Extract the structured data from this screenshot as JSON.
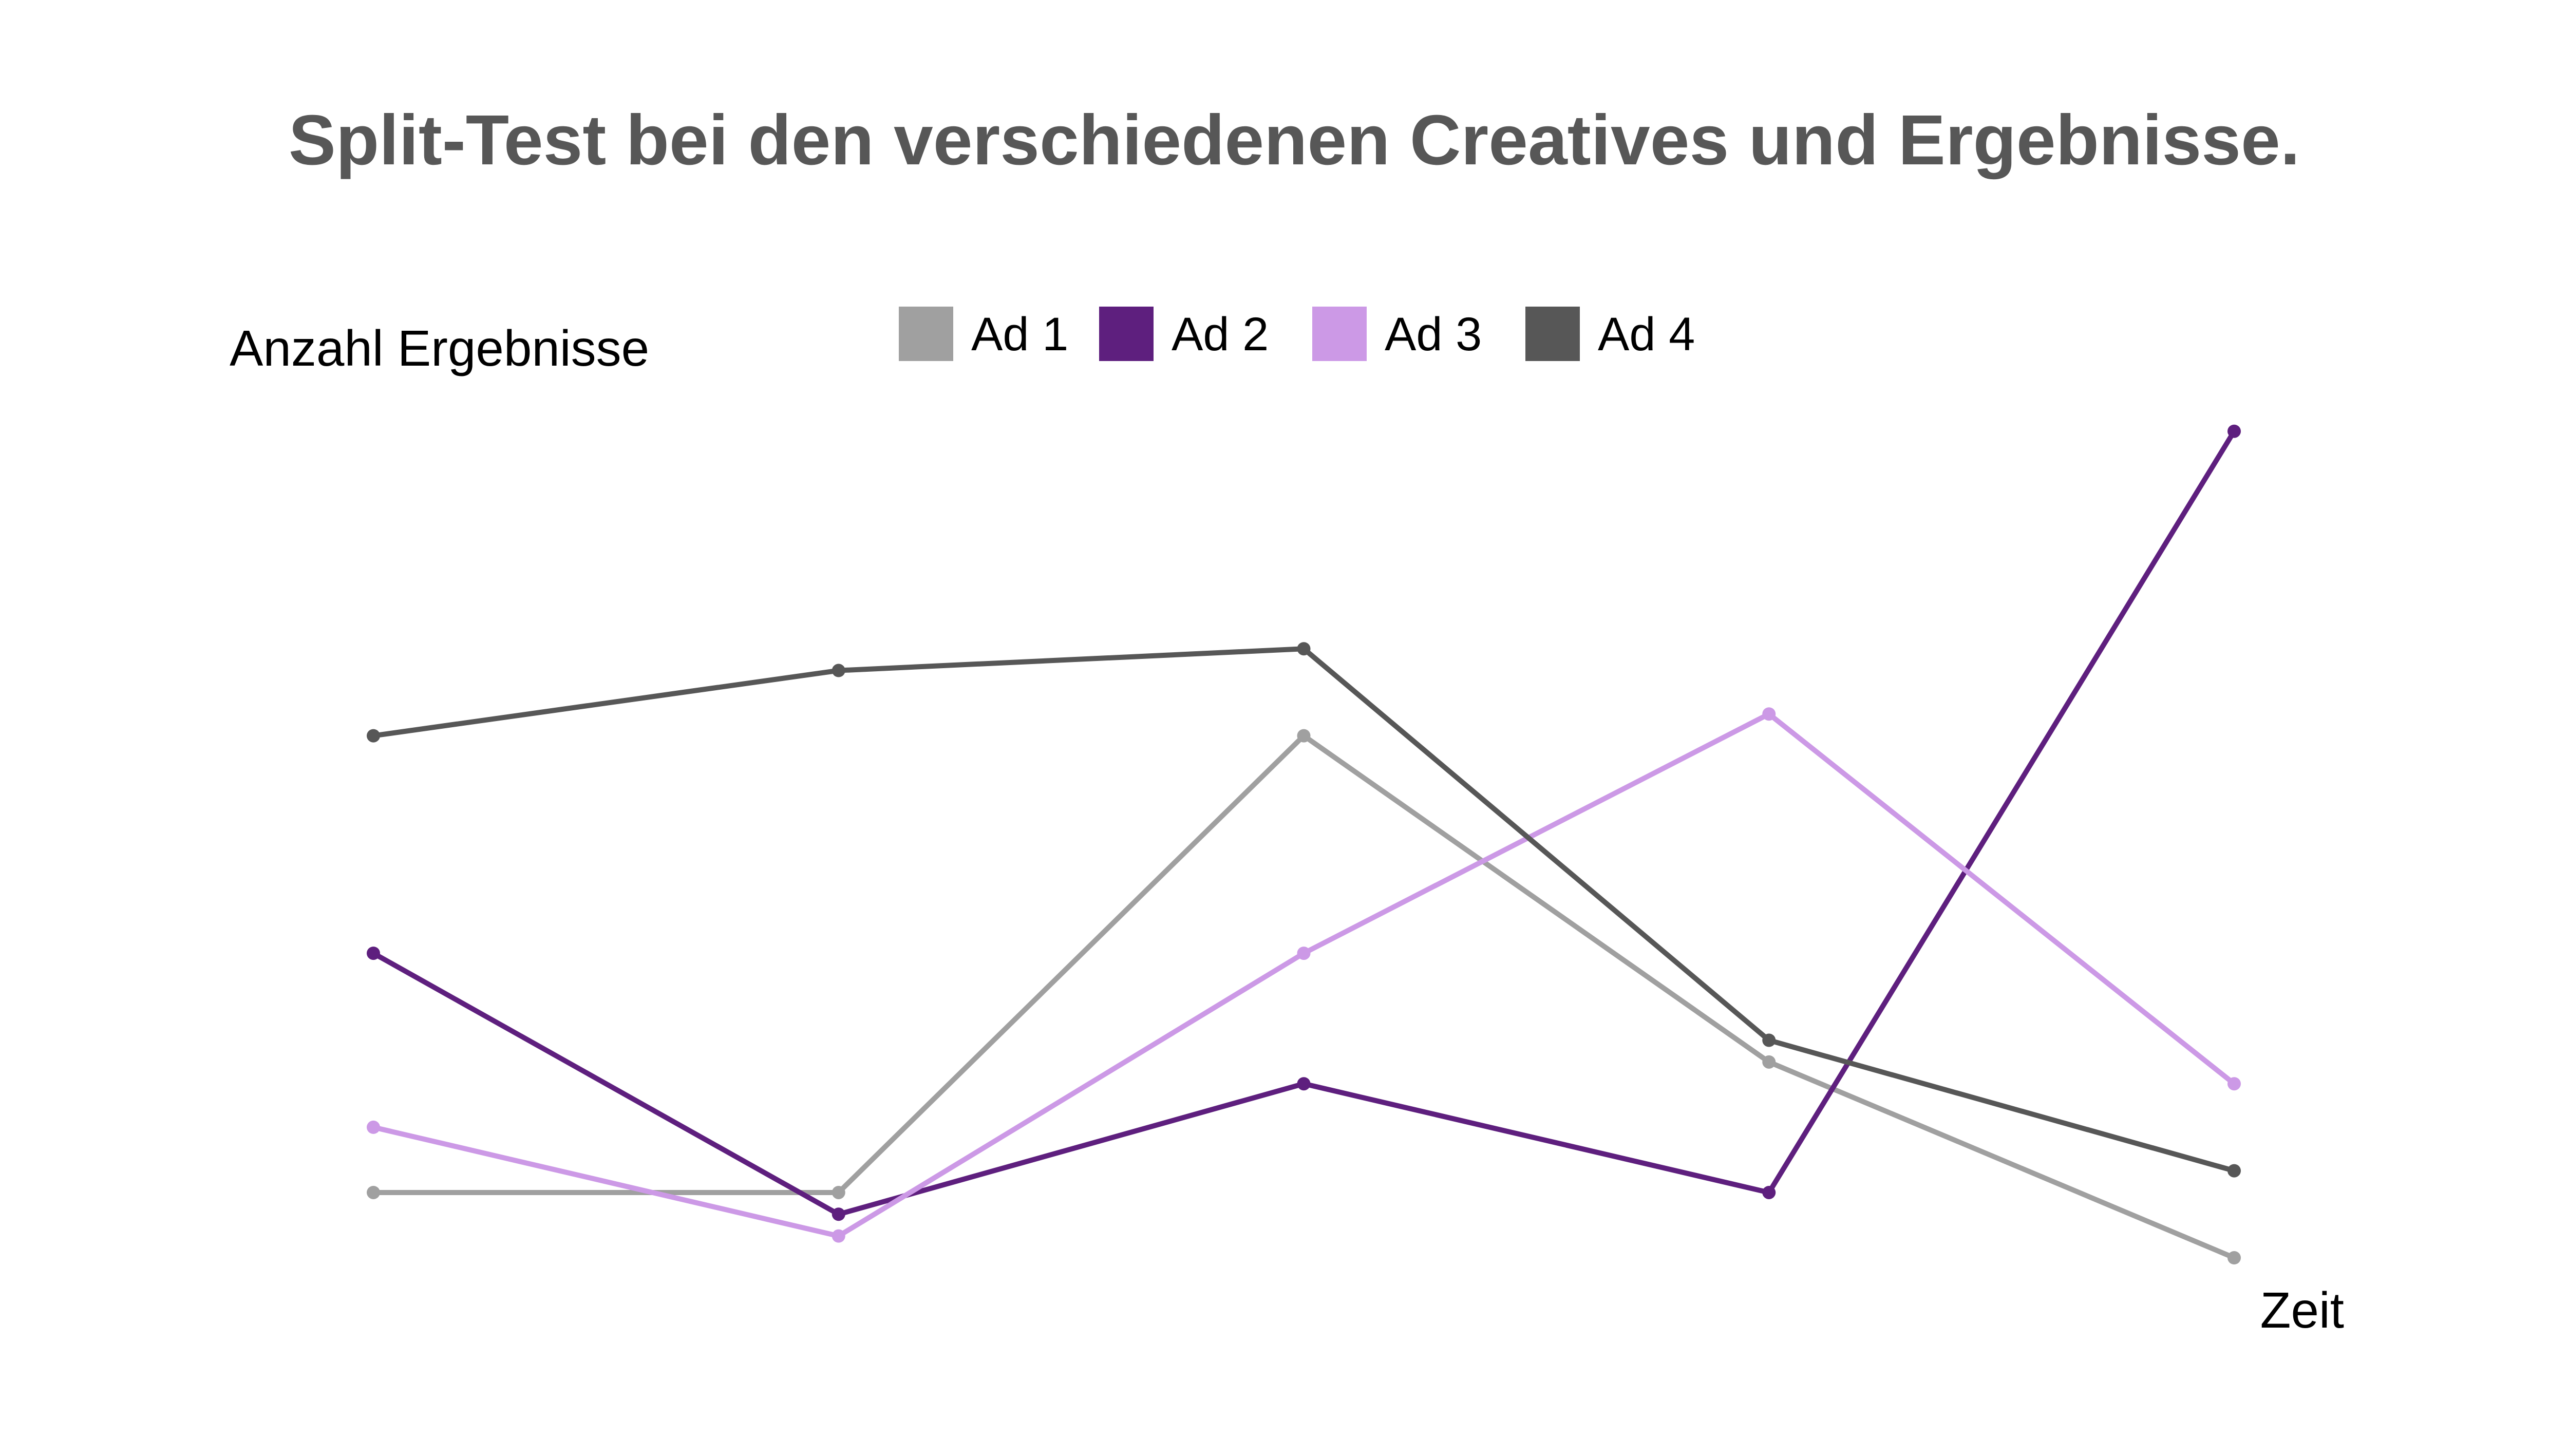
{
  "chart_data": {
    "type": "line",
    "title": "Split-Test bei den verschiedenen Creatives und Ergebnisse.",
    "ylabel": "Anzahl Ergebnisse",
    "xlabel": "Zeit",
    "x": [
      1,
      2,
      3,
      4,
      5
    ],
    "ylim": [
      0,
      40
    ],
    "grid": false,
    "legend_position": "top-center",
    "series": [
      {
        "name": "Ad 1",
        "color": "#A0A0A0",
        "values": [
          3,
          3,
          24,
          9,
          0
        ]
      },
      {
        "name": "Ad 2",
        "color": "#5E1F7E",
        "values": [
          14,
          2,
          8,
          3,
          38
        ]
      },
      {
        "name": "Ad 3",
        "color": "#CC99E6",
        "values": [
          6,
          1,
          14,
          25,
          8
        ]
      },
      {
        "name": "Ad 4",
        "color": "#575757",
        "values": [
          24,
          27,
          28,
          10,
          4
        ]
      }
    ]
  },
  "colors": {
    "title": "#575757",
    "axis_label": "#000000",
    "legend_text": "#000000",
    "background": "#FFFFFF"
  }
}
